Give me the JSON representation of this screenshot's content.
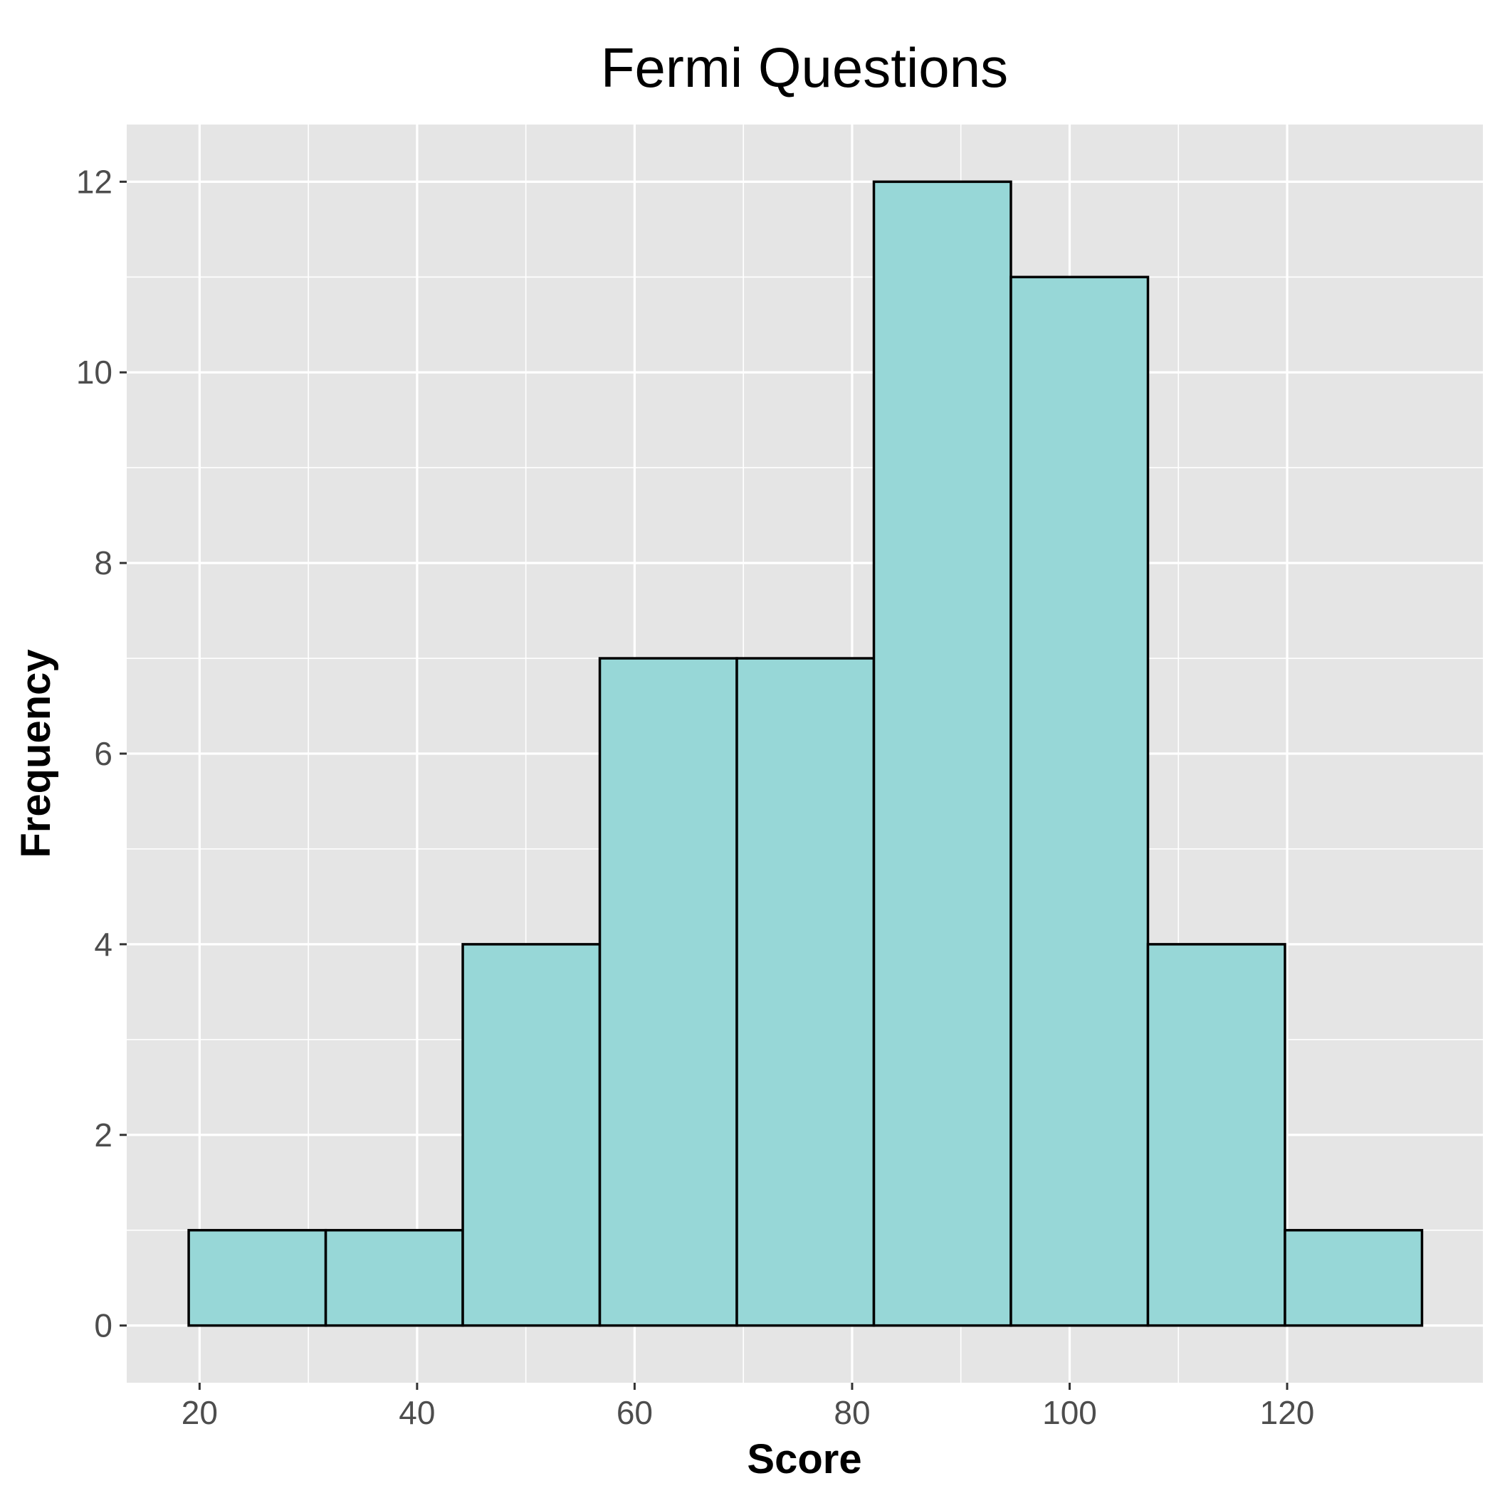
{
  "chart_data": {
    "type": "histogram",
    "title": "Fermi Questions",
    "xlabel": "Score",
    "ylabel": "Frequency",
    "bins": [
      {
        "start": 19.0,
        "end": 31.6,
        "count": 1
      },
      {
        "start": 31.6,
        "end": 44.2,
        "count": 1
      },
      {
        "start": 44.2,
        "end": 56.8,
        "count": 4
      },
      {
        "start": 56.8,
        "end": 69.4,
        "count": 7
      },
      {
        "start": 69.4,
        "end": 82.0,
        "count": 7
      },
      {
        "start": 82.0,
        "end": 94.6,
        "count": 12
      },
      {
        "start": 94.6,
        "end": 107.2,
        "count": 11
      },
      {
        "start": 107.2,
        "end": 119.8,
        "count": 4
      },
      {
        "start": 119.8,
        "end": 132.4,
        "count": 1
      }
    ],
    "xlim": [
      13.3,
      138.0
    ],
    "ylim": [
      -0.6,
      12.6
    ],
    "x_ticks": [
      20,
      40,
      60,
      80,
      100,
      120
    ],
    "y_ticks": [
      0,
      2,
      4,
      6,
      8,
      10,
      12
    ],
    "grid": true,
    "colors": {
      "bar_fill": "#97D7D7",
      "bar_stroke": "#000000",
      "panel_background": "#E5E5E5",
      "grid": "#FFFFFF"
    }
  }
}
